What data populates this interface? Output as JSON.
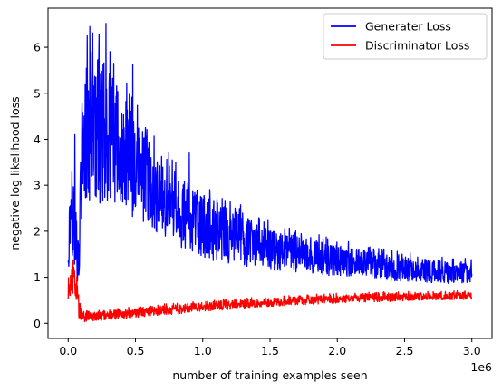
{
  "chart_data": {
    "type": "line",
    "title": "",
    "xlabel": "number of training examples seen",
    "ylabel": "negative log likelihood loss",
    "x_offset_text": "1e6",
    "xlim": [
      -0.15,
      3.15
    ],
    "ylim": [
      -0.33,
      6.85
    ],
    "x_scale_factor": 1000000,
    "x_ticks": [
      0.0,
      0.5,
      1.0,
      1.5,
      2.0,
      2.5,
      3.0
    ],
    "x_tick_labels": [
      "0.0",
      "0.5",
      "1.0",
      "1.5",
      "2.0",
      "2.5",
      "3.0"
    ],
    "y_ticks": [
      0,
      1,
      2,
      3,
      4,
      5,
      6
    ],
    "y_tick_labels": [
      "0",
      "1",
      "2",
      "3",
      "4",
      "5",
      "6"
    ],
    "grid": false,
    "legend_position": "top-right",
    "series": [
      {
        "name": "Generater Loss",
        "color": "#0000ff",
        "x": [
          0.0,
          0.02,
          0.04,
          0.06,
          0.08,
          0.1,
          0.12,
          0.15,
          0.2,
          0.25,
          0.3,
          0.35,
          0.4,
          0.45,
          0.5,
          0.6,
          0.7,
          0.8,
          0.9,
          1.0,
          1.1,
          1.2,
          1.3,
          1.4,
          1.5,
          1.6,
          1.7,
          1.8,
          1.9,
          2.0,
          2.2,
          2.4,
          2.6,
          2.8,
          3.0
        ],
        "y": [
          1.5,
          2.6,
          2.2,
          1.6,
          1.3,
          3.4,
          3.9,
          4.2,
          4.1,
          4.2,
          4.0,
          3.9,
          3.7,
          3.5,
          3.3,
          3.0,
          2.7,
          2.5,
          2.3,
          2.1,
          2.0,
          1.9,
          1.8,
          1.7,
          1.6,
          1.55,
          1.5,
          1.45,
          1.4,
          1.35,
          1.3,
          1.2,
          1.15,
          1.1,
          1.1
        ],
        "spread": [
          0.4,
          1.0,
          0.9,
          0.7,
          0.5,
          1.3,
          1.5,
          1.6,
          1.6,
          1.6,
          1.5,
          1.4,
          1.3,
          1.2,
          1.1,
          0.9,
          0.85,
          0.8,
          0.75,
          0.7,
          0.65,
          0.6,
          0.55,
          0.5,
          0.45,
          0.42,
          0.4,
          0.38,
          0.36,
          0.34,
          0.3,
          0.28,
          0.26,
          0.24,
          0.22
        ],
        "peaks": [
          [
            0.16,
            6.45
          ],
          [
            0.28,
            6.52
          ],
          [
            0.48,
            5.62
          ],
          [
            0.05,
            4.1
          ],
          [
            0.9,
            3.7
          ]
        ]
      },
      {
        "name": "Discriminator Loss",
        "color": "#ff0000",
        "x": [
          0.0,
          0.02,
          0.04,
          0.06,
          0.08,
          0.1,
          0.15,
          0.2,
          0.3,
          0.4,
          0.5,
          0.6,
          0.8,
          1.0,
          1.2,
          1.4,
          1.6,
          1.8,
          2.0,
          2.2,
          2.4,
          2.6,
          2.8,
          3.0
        ],
        "y": [
          0.65,
          1.0,
          0.95,
          0.7,
          0.35,
          0.15,
          0.13,
          0.15,
          0.18,
          0.2,
          0.22,
          0.26,
          0.3,
          0.36,
          0.4,
          0.44,
          0.47,
          0.5,
          0.53,
          0.55,
          0.56,
          0.58,
          0.59,
          0.6
        ],
        "spread": [
          0.35,
          0.35,
          0.3,
          0.3,
          0.25,
          0.12,
          0.1,
          0.1,
          0.1,
          0.1,
          0.1,
          0.1,
          0.1,
          0.1,
          0.1,
          0.09,
          0.09,
          0.09,
          0.09,
          0.09,
          0.09,
          0.08,
          0.08,
          0.08
        ],
        "peaks": [
          [
            0.03,
            1.35
          ]
        ]
      }
    ]
  }
}
